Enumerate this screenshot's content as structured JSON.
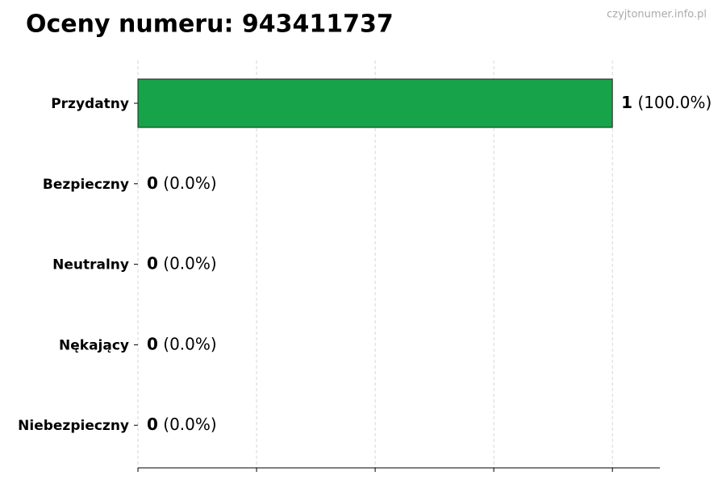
{
  "chart_data": {
    "type": "barh",
    "title": "Oceny numeru: 943411737",
    "watermark": "czyjtonumer.info.pl",
    "categories": [
      "Przydatny",
      "Bezpieczny",
      "Neutralny",
      "Nękający",
      "Niebezpieczny"
    ],
    "values": [
      1,
      0,
      0,
      0,
      0
    ],
    "percent_labels": [
      "(100.0%)",
      "(0.0%)",
      "(0.0%)",
      "(0.0%)",
      "(0.0%)"
    ],
    "color": "#17a349",
    "xlim": [
      0,
      1.1
    ],
    "xticks": [
      0,
      0.25,
      0.5,
      0.75,
      1
    ],
    "grid": true
  }
}
